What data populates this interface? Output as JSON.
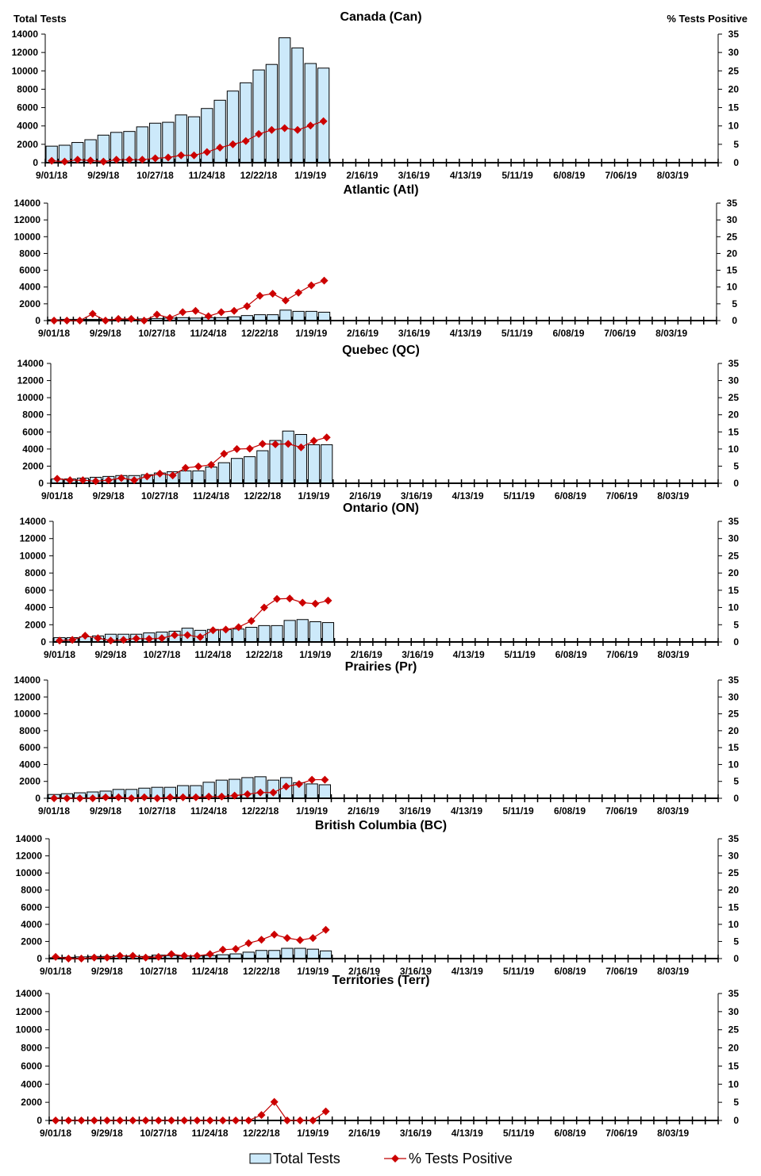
{
  "chart_data": [
    {
      "type": "bar+line",
      "title": "Canada (Can)",
      "ylabel": "Total Tests",
      "y2label": "% Tests Positive",
      "ylim": [
        0,
        14000
      ],
      "yticks": [
        0,
        2000,
        4000,
        6000,
        8000,
        10000,
        12000,
        14000
      ],
      "y2lim": [
        0,
        35
      ],
      "y2ticks": [
        0,
        5,
        10,
        15,
        20,
        25,
        30,
        35
      ],
      "total_tests": [
        1800,
        1900,
        2200,
        2500,
        3000,
        3300,
        3400,
        3900,
        4300,
        4400,
        5200,
        5000,
        5900,
        6800,
        7800,
        8700,
        10100,
        10700,
        13600,
        12500,
        10800,
        10300
      ],
      "pct_positive": [
        0.5,
        0.3,
        0.8,
        0.6,
        0.3,
        0.8,
        0.8,
        0.8,
        1.2,
        1.4,
        2.0,
        2.0,
        2.9,
        4.1,
        5.0,
        5.9,
        7.8,
        8.9,
        9.4,
        8.9,
        10.1,
        11.3
      ]
    },
    {
      "type": "bar+line",
      "title": "Atlantic (Atl)",
      "ylim": [
        0,
        14000
      ],
      "yticks": [
        0,
        2000,
        4000,
        6000,
        8000,
        10000,
        12000,
        14000
      ],
      "y2lim": [
        0,
        35
      ],
      "y2ticks": [
        0,
        5,
        10,
        15,
        20,
        25,
        30,
        35
      ],
      "total_tests": [
        100,
        150,
        150,
        150,
        150,
        150,
        150,
        200,
        250,
        300,
        350,
        300,
        350,
        350,
        450,
        600,
        700,
        700,
        1250,
        1100,
        1100,
        1000
      ],
      "pct_positive": [
        0,
        0,
        0,
        2.0,
        0,
        0.5,
        0.5,
        0,
        1.8,
        0.8,
        2.5,
        2.9,
        1.3,
        2.5,
        2.9,
        4.3,
        7.4,
        8.0,
        6.0,
        8.3,
        10.5,
        11.9
      ]
    },
    {
      "type": "bar+line",
      "title": "Quebec (QC)",
      "ylim": [
        0,
        14000
      ],
      "yticks": [
        0,
        2000,
        4000,
        6000,
        8000,
        10000,
        12000,
        14000
      ],
      "y2lim": [
        0,
        35
      ],
      "y2ticks": [
        0,
        5,
        10,
        15,
        20,
        25,
        30,
        35
      ],
      "total_tests": [
        500,
        500,
        600,
        700,
        800,
        900,
        900,
        1000,
        1200,
        1350,
        1450,
        1450,
        1900,
        2400,
        2900,
        3100,
        3800,
        5000,
        6100,
        5700,
        4500,
        4500
      ],
      "pct_positive": [
        1.3,
        0.9,
        0.9,
        0.6,
        0.9,
        1.5,
        0.9,
        2.0,
        2.8,
        2.3,
        4.5,
        4.9,
        5.4,
        8.6,
        10.0,
        10.1,
        11.5,
        11.4,
        11.5,
        10.5,
        12.4,
        13.4
      ]
    },
    {
      "type": "bar+line",
      "title": "Ontario (ON)",
      "ylim": [
        0,
        14000
      ],
      "yticks": [
        0,
        2000,
        4000,
        6000,
        8000,
        10000,
        12000,
        14000
      ],
      "y2lim": [
        0,
        35
      ],
      "y2ticks": [
        0,
        5,
        10,
        15,
        20,
        25,
        30,
        35
      ],
      "total_tests": [
        500,
        500,
        600,
        700,
        900,
        900,
        900,
        1050,
        1150,
        1250,
        1600,
        1350,
        1450,
        1450,
        1500,
        1700,
        1900,
        1900,
        2500,
        2600,
        2350,
        2250
      ],
      "pct_positive": [
        0.4,
        0.6,
        1.8,
        1.1,
        0.4,
        0.6,
        1.0,
        0.9,
        1.1,
        2.0,
        2.0,
        1.4,
        3.4,
        3.6,
        4.3,
        6.1,
        10.0,
        12.5,
        12.6,
        11.4,
        11.1,
        12.0
      ]
    },
    {
      "type": "bar+line",
      "title": "Prairies (Pr)",
      "ylim": [
        0,
        14000
      ],
      "yticks": [
        0,
        2000,
        4000,
        6000,
        8000,
        10000,
        12000,
        14000
      ],
      "y2lim": [
        0,
        35
      ],
      "y2ticks": [
        0,
        5,
        10,
        15,
        20,
        25,
        30,
        35
      ],
      "total_tests": [
        450,
        550,
        650,
        750,
        850,
        1050,
        1050,
        1200,
        1300,
        1300,
        1500,
        1500,
        1900,
        2150,
        2250,
        2450,
        2550,
        2150,
        2450,
        1850,
        1700,
        1600
      ],
      "pct_positive": [
        0,
        0,
        0,
        0,
        0.3,
        0.3,
        0,
        0.3,
        0,
        0.3,
        0.3,
        0.3,
        0.5,
        0.5,
        0.8,
        1.2,
        1.7,
        1.7,
        3.5,
        4.2,
        5.5,
        5.5
      ]
    },
    {
      "type": "bar+line",
      "title": "British Columbia (BC)",
      "ylim": [
        0,
        14000
      ],
      "yticks": [
        0,
        2000,
        4000,
        6000,
        8000,
        10000,
        12000,
        14000
      ],
      "y2lim": [
        0,
        35
      ],
      "y2ticks": [
        0,
        5,
        10,
        15,
        20,
        25,
        30,
        35
      ],
      "total_tests": [
        100,
        150,
        200,
        250,
        250,
        300,
        250,
        250,
        400,
        350,
        300,
        300,
        350,
        450,
        550,
        750,
        950,
        950,
        1200,
        1200,
        1100,
        900
      ],
      "pct_positive": [
        0.5,
        0,
        0,
        0.3,
        0.3,
        0.8,
        0.8,
        0.3,
        0.5,
        1.3,
        0.8,
        0.8,
        1.3,
        2.6,
        2.8,
        4.5,
        5.5,
        7.0,
        6.0,
        5.4,
        6.0,
        8.4
      ]
    },
    {
      "type": "bar+line",
      "title": "Territories (Terr)",
      "ylim": [
        0,
        14000
      ],
      "yticks": [
        0,
        2000,
        4000,
        6000,
        8000,
        10000,
        12000,
        14000
      ],
      "y2lim": [
        0,
        35
      ],
      "y2ticks": [
        0,
        5,
        10,
        15,
        20,
        25,
        30,
        35
      ],
      "total_tests": [
        20,
        20,
        20,
        20,
        20,
        20,
        20,
        20,
        20,
        20,
        20,
        20,
        20,
        20,
        20,
        20,
        30,
        30,
        30,
        30,
        30,
        30
      ],
      "pct_positive": [
        0,
        0,
        0,
        0,
        0,
        0,
        0,
        0,
        0,
        0,
        0,
        0,
        0,
        0,
        0,
        0,
        1.5,
        5.1,
        0,
        0,
        0,
        2.5
      ]
    }
  ],
  "x_tick_labels": [
    "9/01/18",
    "9/29/18",
    "10/27/18",
    "11/24/18",
    "12/22/18",
    "1/19/19",
    "2/16/19",
    "3/16/19",
    "4/13/19",
    "5/11/19",
    "6/08/19",
    "7/06/19",
    "8/03/19"
  ],
  "x_categories_weeks": 52,
  "legend": {
    "bar": "Total Tests",
    "line": "% Tests Positive",
    "placement": "bottom"
  },
  "colors": {
    "bar_fill": "#CCE9FA",
    "bar_stroke": "#000000",
    "line": "#C00000",
    "marker": "#CC0000"
  }
}
